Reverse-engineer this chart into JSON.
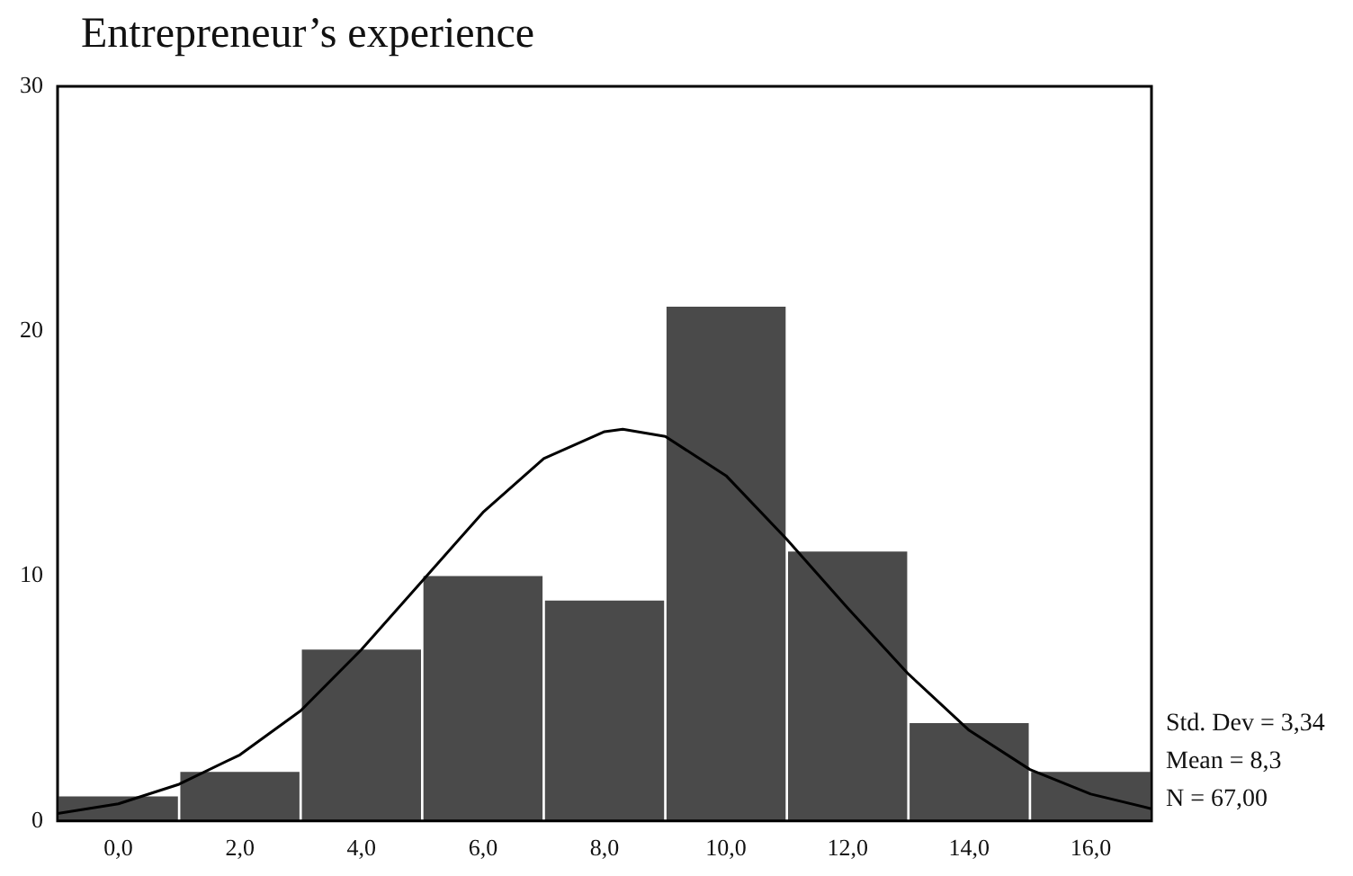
{
  "chart_data": {
    "type": "histogram",
    "title": "Entrepreneur’s experience",
    "bins": [
      -1,
      1,
      3,
      5,
      7,
      9,
      11,
      13,
      15,
      17
    ],
    "values": [
      1,
      2,
      7,
      10,
      9,
      21,
      11,
      4,
      2
    ],
    "color": "#4a4a4a",
    "series": [
      {
        "type": "line",
        "color": "#000000",
        "x": [
          -1,
          0,
          1,
          2,
          3,
          4,
          5,
          6,
          7,
          8,
          8.3,
          9,
          10,
          11,
          12,
          13,
          14,
          15,
          16,
          17
        ],
        "values": [
          0.3,
          0.7,
          1.5,
          2.7,
          4.5,
          7.0,
          9.8,
          12.6,
          14.8,
          15.9,
          16.0,
          15.7,
          14.1,
          11.5,
          8.7,
          6.0,
          3.7,
          2.1,
          1.1,
          0.5
        ]
      }
    ],
    "xlim": [
      -1,
      17
    ],
    "ylim": [
      0,
      30
    ],
    "xticks": [
      {
        "value": 0,
        "label": "0,0"
      },
      {
        "value": 2,
        "label": "2,0"
      },
      {
        "value": 4,
        "label": "4,0"
      },
      {
        "value": 6,
        "label": "6,0"
      },
      {
        "value": 8,
        "label": "8,0"
      },
      {
        "value": 10,
        "label": "10,0"
      },
      {
        "value": 12,
        "label": "12,0"
      },
      {
        "value": 14,
        "label": "14,0"
      },
      {
        "value": 16,
        "label": "16,0"
      }
    ],
    "yticks": [
      0,
      10,
      20,
      30
    ],
    "annotations": [
      "Std. Dev = 3,34",
      "Mean = 8,3",
      "N = 67,00"
    ]
  }
}
